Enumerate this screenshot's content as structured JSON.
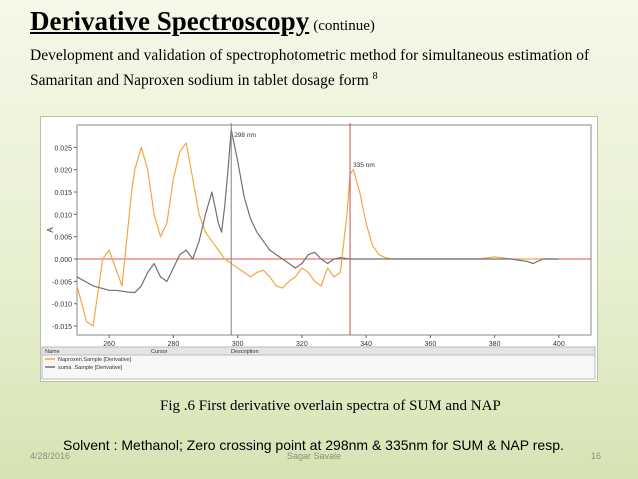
{
  "slide": {
    "title": "Derivative Spectroscopy",
    "title_suffix": "(continue)",
    "subtitle": "Development and validation of spectrophotometric method for simultaneous estimation of Samaritan and Naproxen sodium in tablet dosage form",
    "subtitle_ref": "8",
    "caption": "Fig .6 First derivative overlain spectra of SUM and NAP",
    "solvent_note": "Solvent : Methanol; Zero crossing point at 298nm & 335nm for SUM & NAP resp.",
    "footer": {
      "date": "4/28/2016",
      "author": "Sagar Savale",
      "page": "16"
    }
  },
  "chart_data": {
    "type": "line",
    "xlabel": "nm",
    "ylabel": "A",
    "xlim": [
      250,
      410
    ],
    "ylim": [
      -0.017,
      0.03
    ],
    "x_ticks": [
      260,
      280,
      300,
      320,
      340,
      360,
      380,
      400
    ],
    "y_ticks": [
      -0.015,
      -0.01,
      -0.005,
      0.0,
      0.005,
      0.01,
      0.015,
      0.02,
      0.025
    ],
    "y_tick_labels": [
      "-0.015",
      "-0.010",
      "-0.005",
      "0.000",
      "0.005",
      "0.010",
      "0.015",
      "0.020",
      "0.025"
    ],
    "cursors": [
      {
        "x": 298,
        "label": "298 nm",
        "color": "#808080"
      },
      {
        "x": 335,
        "label": "335 nm",
        "color": "#c0504d"
      }
    ],
    "zero_line_color": "#e05050",
    "legend": {
      "headers": [
        "Name",
        "Cursor",
        "Description"
      ],
      "entries": [
        "Naproxen.Sample [Derivative]",
        "suma .Sample [Derivative]"
      ]
    },
    "series": [
      {
        "name": "Naproxen.Sample [Derivative]",
        "color": "#f5a742",
        "x": [
          250,
          253,
          255,
          256,
          258,
          260,
          262,
          264,
          266,
          267,
          268,
          270,
          272,
          274,
          276,
          278,
          280,
          282,
          284,
          286,
          288,
          290,
          292,
          294,
          296,
          298,
          300,
          302,
          304,
          306,
          308,
          310,
          312,
          314,
          316,
          318,
          320,
          322,
          324,
          326,
          328,
          330,
          332,
          334,
          335,
          336,
          338,
          340,
          342,
          344,
          346,
          348,
          350,
          355,
          360,
          365,
          370,
          375,
          380,
          385,
          390,
          395,
          400
        ],
        "y": [
          -0.006,
          -0.014,
          -0.015,
          -0.01,
          0.0,
          0.002,
          -0.002,
          -0.006,
          0.008,
          0.015,
          0.02,
          0.025,
          0.02,
          0.01,
          0.005,
          0.008,
          0.018,
          0.024,
          0.026,
          0.018,
          0.01,
          0.006,
          0.004,
          0.002,
          0.0,
          -0.001,
          -0.002,
          -0.003,
          -0.004,
          -0.003,
          -0.0025,
          -0.004,
          -0.006,
          -0.0065,
          -0.005,
          -0.004,
          -0.002,
          -0.003,
          -0.005,
          -0.006,
          -0.002,
          -0.004,
          -0.003,
          0.01,
          0.019,
          0.02,
          0.015,
          0.008,
          0.003,
          0.001,
          0.0003,
          0.0,
          0.0,
          0.0,
          0.0,
          0.0,
          0.0,
          0.0,
          0.0005,
          0.0,
          0.0,
          0.0,
          0.0
        ]
      },
      {
        "name": "suma .Sample [Derivative]",
        "color": "#707070",
        "x": [
          250,
          255,
          260,
          262,
          264,
          266,
          268,
          270,
          272,
          274,
          276,
          278,
          280,
          282,
          284,
          286,
          288,
          290,
          292,
          294,
          295,
          296,
          297,
          298,
          300,
          302,
          304,
          306,
          308,
          310,
          312,
          314,
          316,
          318,
          320,
          322,
          324,
          326,
          328,
          330,
          332,
          335,
          340,
          345,
          350,
          355,
          360,
          365,
          370,
          375,
          380,
          385,
          390,
          392,
          395,
          400
        ],
        "y": [
          -0.004,
          -0.006,
          -0.007,
          -0.007,
          -0.0072,
          -0.0074,
          -0.0075,
          -0.006,
          -0.003,
          -0.001,
          -0.004,
          -0.005,
          -0.002,
          0.001,
          0.002,
          0.0,
          0.004,
          0.01,
          0.015,
          0.008,
          0.006,
          0.012,
          0.02,
          0.029,
          0.022,
          0.014,
          0.009,
          0.006,
          0.004,
          0.002,
          0.001,
          0.0,
          -0.001,
          -0.002,
          -0.001,
          0.001,
          0.0015,
          0.0,
          -0.001,
          0.0,
          0.0003,
          0.0,
          0.0,
          0.0,
          0.0,
          0.0,
          0.0,
          0.0,
          0.0,
          0.0,
          0.0,
          0.0,
          -0.0005,
          -0.001,
          0.0,
          0.0
        ]
      }
    ]
  }
}
